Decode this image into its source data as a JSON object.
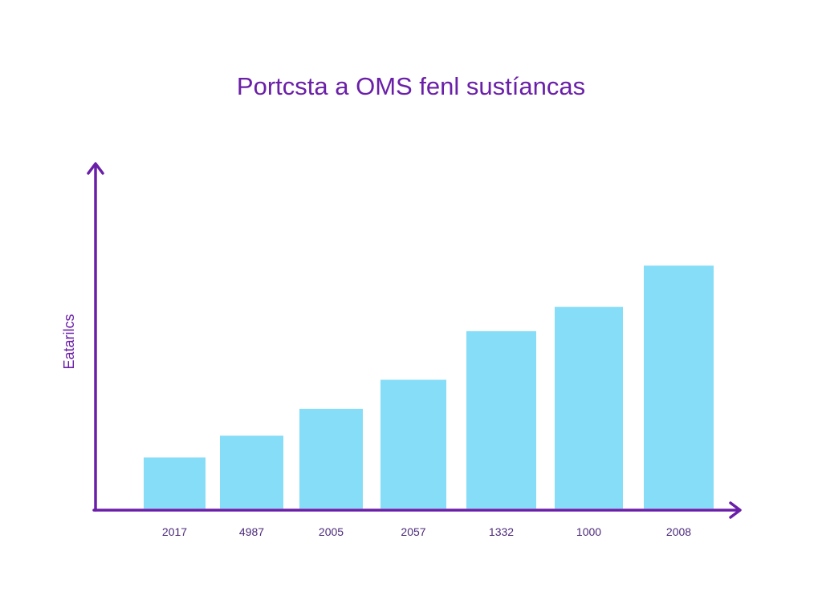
{
  "chart_data": {
    "type": "bar",
    "title": "Portcsta a OMS fenl sustíancas",
    "xlabel": "",
    "ylabel": "Eatarilcs",
    "categories": [
      "2017",
      "4987",
      "2005",
      "2057",
      "1332",
      "1000",
      "2008"
    ],
    "values": [
      21,
      30,
      41,
      53,
      73,
      83,
      100
    ],
    "ylim": [
      0,
      140
    ],
    "grid": false,
    "legend": "none"
  },
  "colors": {
    "bar": "#85DDF8",
    "axis": "#6A1FA8",
    "title": "#6A1FA8",
    "tick_text": "#4B2A7A",
    "background": "#FFFFFF"
  }
}
